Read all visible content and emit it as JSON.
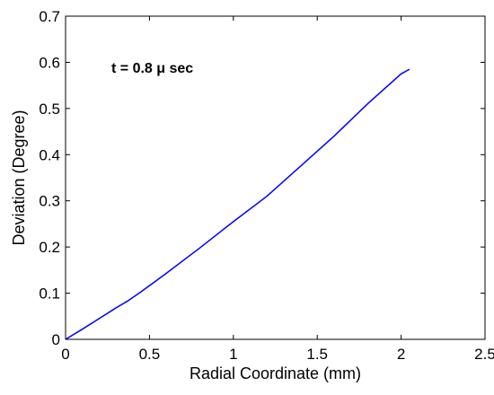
{
  "chart_data": {
    "type": "line",
    "title": "",
    "xlabel": "Radial Coordinate (mm)",
    "ylabel": "Deviation (Degree)",
    "xlim": [
      0,
      2.5
    ],
    "ylim": [
      0,
      0.7
    ],
    "x_ticks": [
      "0",
      "0.5",
      "1",
      "1.5",
      "2",
      "2.5"
    ],
    "y_ticks": [
      "0",
      "0.1",
      "0.2",
      "0.3",
      "0.4",
      "0.5",
      "0.6",
      "0.7"
    ],
    "annotation": "t = 0.8 μ sec",
    "grid": false,
    "line_color": "#0000ff",
    "series": [
      {
        "x": [
          0,
          0.1,
          0.2,
          0.3,
          0.37,
          0.45,
          0.6,
          0.8,
          1.0,
          1.2,
          1.4,
          1.6,
          1.8,
          2.0,
          2.05
        ],
        "y": [
          0,
          0.022,
          0.045,
          0.068,
          0.083,
          0.103,
          0.143,
          0.198,
          0.255,
          0.31,
          0.375,
          0.44,
          0.51,
          0.575,
          0.585
        ]
      }
    ]
  }
}
